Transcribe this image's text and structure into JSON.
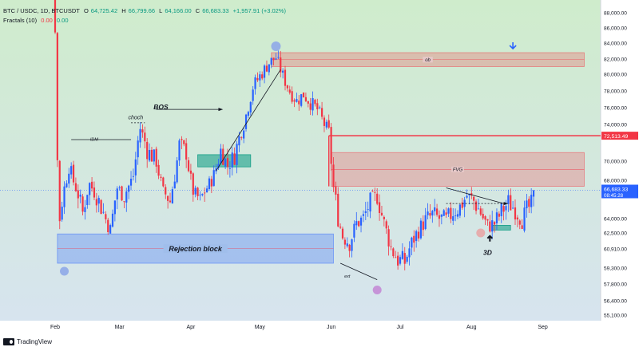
{
  "header": {
    "symbol": "BTC / USDC, 1D, BTCUSDT",
    "o_label": "O",
    "o": "64,725.42",
    "h_label": "H",
    "h": "66,799.66",
    "l_label": "L",
    "l": "64,166.00",
    "c_label": "C",
    "c": "66,683.33",
    "change": "+1,957.91 (+3.02%)",
    "indicator": "Fractals (10)",
    "ind_v1": "0.00",
    "ind_v2": "0.00"
  },
  "footer": {
    "brand": "TradingView"
  },
  "colors": {
    "bull": "#2962ff",
    "bear": "#f23645",
    "bg_top": "#cfeccc",
    "bg_bottom": "#d7e4ef",
    "accent_line": "#f23645"
  },
  "chart_data": {
    "type": "candlestick",
    "ylim": [
      54000,
      89000
    ],
    "ytick_labels": [
      "88,000.00",
      "86,000.00",
      "84,000.00",
      "82,000.00",
      "80,000.00",
      "78,000.00",
      "76,000.00",
      "74,000.00",
      "70,000.00",
      "68,000.00",
      "64,000.00",
      "62,500.00",
      "60,910.00",
      "59,300.00",
      "57,800.00",
      "56,400.00",
      "55,100.00"
    ],
    "ytick_values": [
      88000,
      86000,
      84000,
      82000,
      80000,
      78000,
      76000,
      74000,
      70000,
      68000,
      64000,
      62500,
      60910,
      59300,
      57800,
      56400,
      55100
    ],
    "x_labels": [
      "Feb",
      "Mar",
      "Apr",
      "May",
      "Jun",
      "Jul",
      "Aug",
      "Sep"
    ],
    "x_label_days": [
      0,
      28,
      59,
      89,
      120,
      150,
      181,
      212
    ],
    "x_start": "2025-02-01",
    "close_path": [
      {
        "d": -9,
        "v": 102000
      },
      {
        "d": -5,
        "v": 97000
      },
      {
        "d": -2,
        "v": 96000
      },
      {
        "d": 0,
        "v": 86000
      },
      {
        "d": 1,
        "v": 70000
      },
      {
        "d": 2,
        "v": 64000
      },
      {
        "d": 4,
        "v": 67000
      },
      {
        "d": 6,
        "v": 69500
      },
      {
        "d": 9,
        "v": 67000
      },
      {
        "d": 12,
        "v": 64500
      },
      {
        "d": 15,
        "v": 67500
      },
      {
        "d": 18,
        "v": 66000
      },
      {
        "d": 21,
        "v": 64500
      },
      {
        "d": 24,
        "v": 62800
      },
      {
        "d": 27,
        "v": 67000
      },
      {
        "d": 30,
        "v": 66000
      },
      {
        "d": 34,
        "v": 68500
      },
      {
        "d": 37,
        "v": 73500
      },
      {
        "d": 40,
        "v": 71000
      },
      {
        "d": 44,
        "v": 70000
      },
      {
        "d": 47,
        "v": 66500
      },
      {
        "d": 50,
        "v": 65500
      },
      {
        "d": 54,
        "v": 71500
      },
      {
        "d": 57,
        "v": 70800
      },
      {
        "d": 60,
        "v": 66500
      },
      {
        "d": 63,
        "v": 65500
      },
      {
        "d": 66,
        "v": 67000
      },
      {
        "d": 69,
        "v": 68500
      },
      {
        "d": 72,
        "v": 71000
      },
      {
        "d": 75,
        "v": 69500
      },
      {
        "d": 78,
        "v": 70500
      },
      {
        "d": 82,
        "v": 74000
      },
      {
        "d": 86,
        "v": 78500
      },
      {
        "d": 90,
        "v": 80200
      },
      {
        "d": 93,
        "v": 81500
      },
      {
        "d": 96,
        "v": 82200
      },
      {
        "d": 99,
        "v": 79800
      },
      {
        "d": 102,
        "v": 78000
      },
      {
        "d": 105,
        "v": 76800
      },
      {
        "d": 108,
        "v": 77600
      },
      {
        "d": 111,
        "v": 76600
      },
      {
        "d": 114,
        "v": 75800
      },
      {
        "d": 117,
        "v": 74000
      },
      {
        "d": 119,
        "v": 73000
      },
      {
        "d": 121,
        "v": 67000
      },
      {
        "d": 123,
        "v": 64000
      },
      {
        "d": 125,
        "v": 62200
      },
      {
        "d": 128,
        "v": 61500
      },
      {
        "d": 131,
        "v": 63500
      },
      {
        "d": 134,
        "v": 64000
      },
      {
        "d": 137,
        "v": 65500
      },
      {
        "d": 140,
        "v": 66000
      },
      {
        "d": 143,
        "v": 63500
      },
      {
        "d": 146,
        "v": 61000
      },
      {
        "d": 149,
        "v": 60000
      },
      {
        "d": 152,
        "v": 59800
      },
      {
        "d": 155,
        "v": 61500
      },
      {
        "d": 158,
        "v": 62800
      },
      {
        "d": 161,
        "v": 63800
      },
      {
        "d": 164,
        "v": 64300
      },
      {
        "d": 167,
        "v": 64000
      },
      {
        "d": 170,
        "v": 63800
      },
      {
        "d": 173,
        "v": 64600
      },
      {
        "d": 176,
        "v": 65000
      },
      {
        "d": 179,
        "v": 66000
      },
      {
        "d": 182,
        "v": 65500
      },
      {
        "d": 185,
        "v": 64500
      },
      {
        "d": 188,
        "v": 63200
      },
      {
        "d": 191,
        "v": 63500
      },
      {
        "d": 194,
        "v": 64600
      },
      {
        "d": 197,
        "v": 65400
      },
      {
        "d": 200,
        "v": 64800
      },
      {
        "d": 203,
        "v": 63800
      },
      {
        "d": 205,
        "v": 64700
      },
      {
        "d": 207,
        "v": 65200
      },
      {
        "d": 208,
        "v": 66683
      }
    ],
    "price_lines": [
      {
        "value": 72513.49,
        "label": "72,513.49",
        "color": "#f23645"
      },
      {
        "value": 66683.33,
        "label": "66,683.33",
        "sublabel": "08:45:28",
        "color": "#2962ff"
      }
    ],
    "zones": [
      {
        "label": "ob",
        "d0": 94,
        "d1": 230,
        "y0": 82800,
        "y1": 81000,
        "kind": "red"
      },
      {
        "label": "FVG",
        "d0": 120,
        "d1": 230,
        "y0": 70800,
        "y1": 67200,
        "kind": "red"
      },
      {
        "label": "Rejection block",
        "d0": 1,
        "d1": 121,
        "y0": 62400,
        "y1": 59700,
        "kind": "blue"
      },
      {
        "label": "",
        "d0": 62,
        "d1": 85,
        "y0": 70600,
        "y1": 69400,
        "kind": "green"
      },
      {
        "label": "",
        "d0": 190,
        "d1": 198,
        "y0": 63300,
        "y1": 62800,
        "kind": "green"
      }
    ],
    "annotations": [
      {
        "text": "BOS",
        "d": 46,
        "v": 75800,
        "style": "bold-italic"
      },
      {
        "text": "choch",
        "d": 35,
        "v": 74600,
        "style": "italic"
      },
      {
        "text": "IDM",
        "d": 17,
        "v": 71900,
        "style": "italic-small"
      },
      {
        "text": "ext",
        "d": 127,
        "v": 58400,
        "style": "italic-small"
      },
      {
        "text": "3D",
        "d": 188,
        "v": 60400,
        "style": "bold-italic"
      }
    ]
  }
}
